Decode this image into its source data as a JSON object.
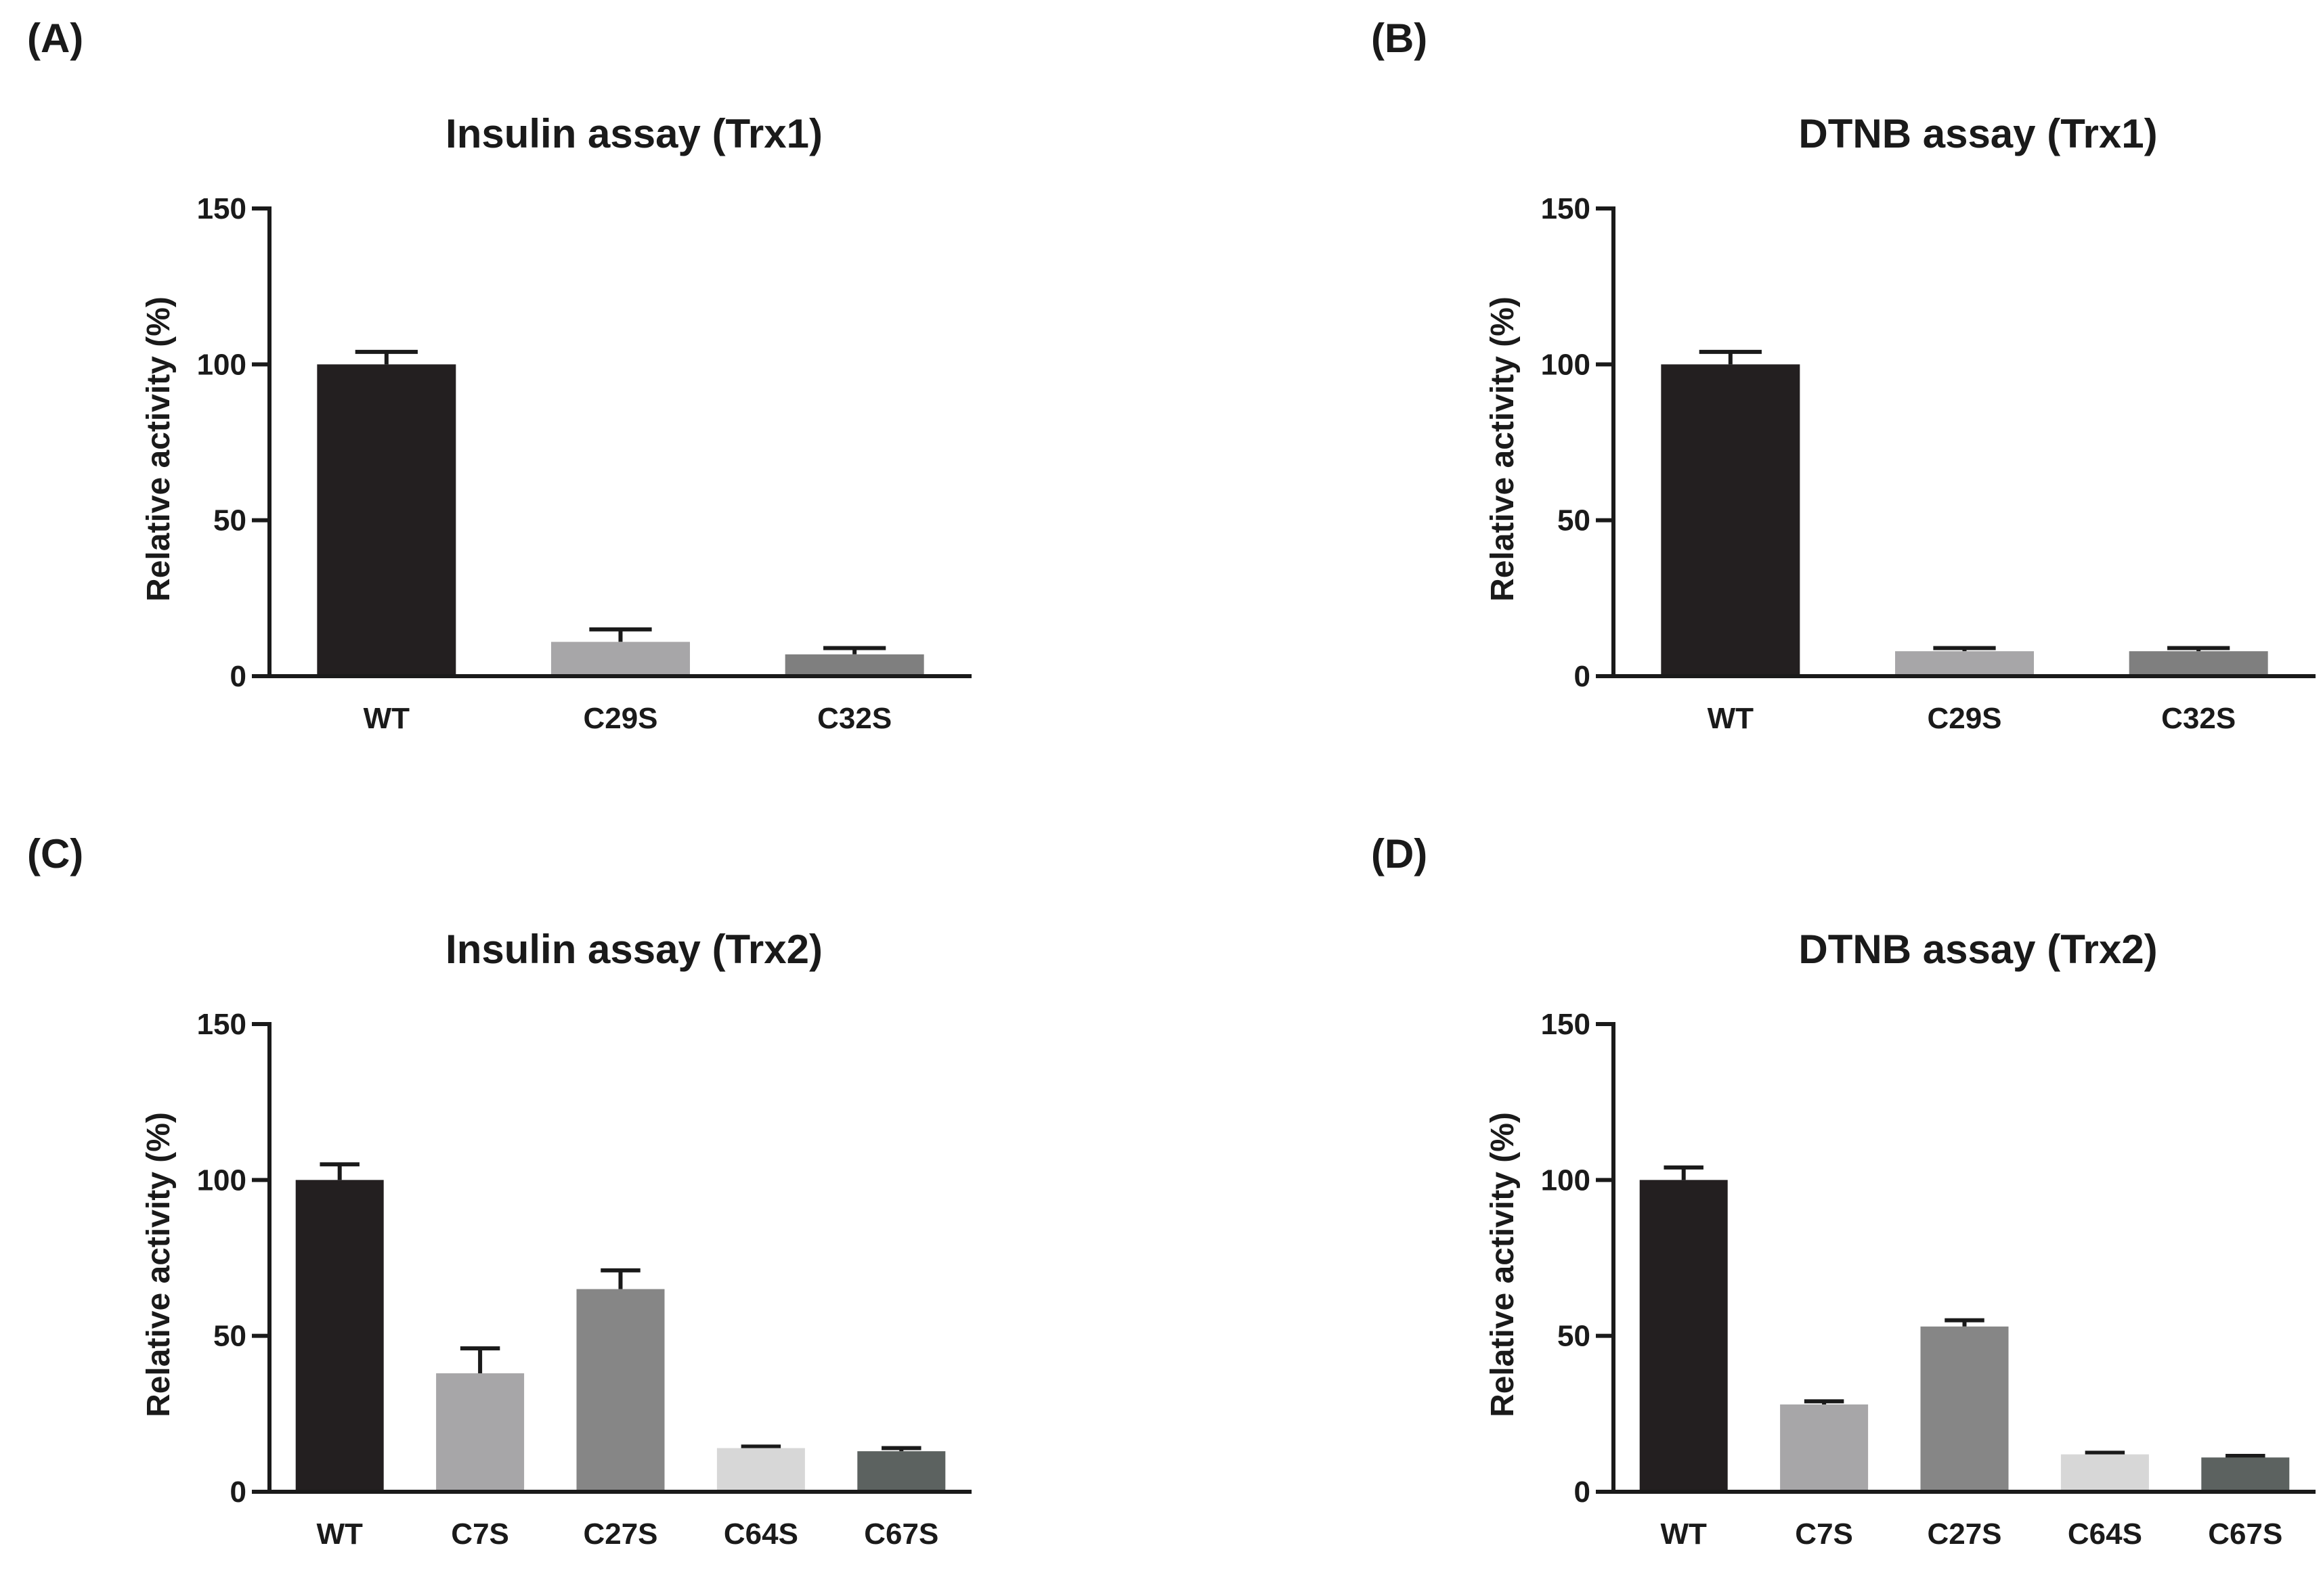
{
  "chart_data": [
    {
      "panel_label": "(A)",
      "type": "bar",
      "title": "Insulin assay (Trx1)",
      "xlabel": "",
      "ylabel": "Relative activity (%)",
      "ylim": [
        0,
        150
      ],
      "yticks": [
        "0",
        "50",
        "100",
        "150"
      ],
      "categories": [
        "WT",
        "C29S",
        "C32S"
      ],
      "values": [
        100,
        11,
        7
      ],
      "errors": [
        4,
        4,
        2
      ],
      "colors": [
        "#231f20",
        "#a7a6a8",
        "#7f7f7f"
      ]
    },
    {
      "panel_label": "(B)",
      "type": "bar",
      "title": "DTNB assay (Trx1)",
      "xlabel": "",
      "ylabel": "Relative activity (%)",
      "ylim": [
        0,
        150
      ],
      "yticks": [
        "0",
        "50",
        "100",
        "150"
      ],
      "categories": [
        "WT",
        "C29S",
        "C32S"
      ],
      "values": [
        100,
        8,
        8
      ],
      "errors": [
        4,
        1,
        1
      ],
      "colors": [
        "#231f20",
        "#a7a6a8",
        "#7f7f7f"
      ]
    },
    {
      "panel_label": "(C)",
      "type": "bar",
      "title": "Insulin assay (Trx2)",
      "xlabel": "",
      "ylabel": "Relative activity (%)",
      "ylim": [
        0,
        150
      ],
      "yticks": [
        "0",
        "50",
        "100",
        "150"
      ],
      "categories": [
        "WT",
        "C7S",
        "C27S",
        "C64S",
        "C67S"
      ],
      "values": [
        100,
        38,
        65,
        14,
        13
      ],
      "errors": [
        5,
        8,
        6,
        0.5,
        1
      ],
      "colors": [
        "#231f20",
        "#a7a6a8",
        "#868686",
        "#d7d7d7",
        "#5c6260"
      ]
    },
    {
      "panel_label": "(D)",
      "type": "bar",
      "title": "DTNB assay (Trx2)",
      "xlabel": "",
      "ylabel": "Relative activity (%)",
      "ylim": [
        0,
        150
      ],
      "yticks": [
        "0",
        "50",
        "100",
        "150"
      ],
      "categories": [
        "WT",
        "C7S",
        "C27S",
        "C64S",
        "C67S"
      ],
      "values": [
        100,
        28,
        53,
        12,
        11
      ],
      "errors": [
        4,
        1,
        2,
        0.5,
        0.5
      ],
      "colors": [
        "#231f20",
        "#a7a6a8",
        "#868686",
        "#d7d7d7",
        "#5c6260"
      ]
    }
  ]
}
